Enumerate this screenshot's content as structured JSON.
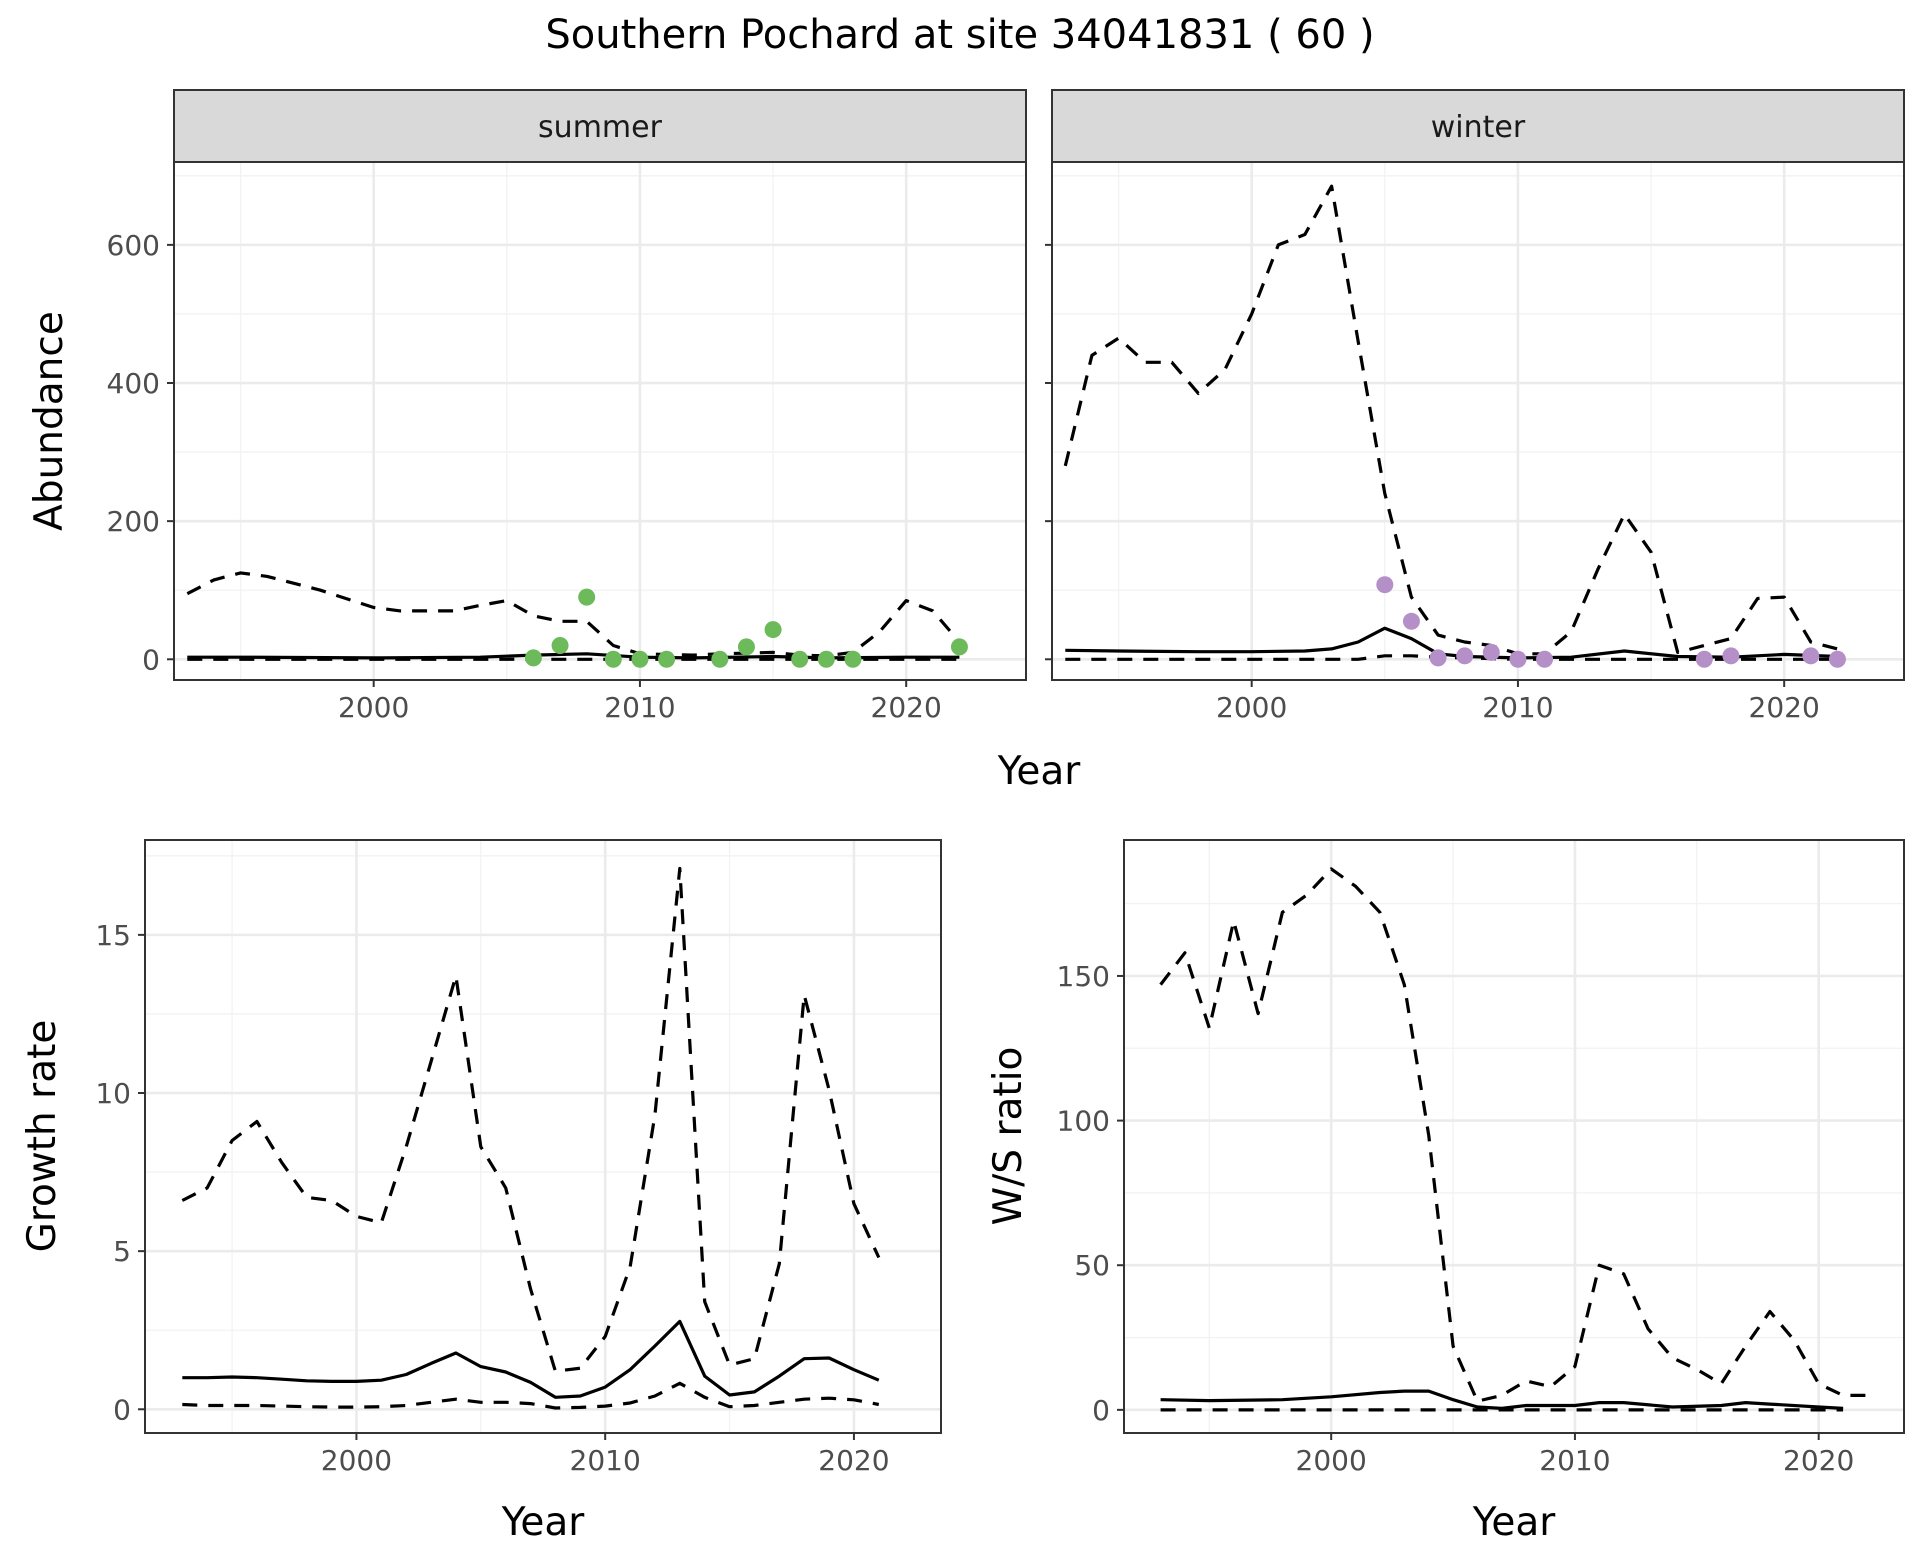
{
  "title": "Southern Pochard at site 34041831 ( 60 )",
  "colors": {
    "summer_points": "#6cba5a",
    "winter_points": "#b48fc8",
    "strip_fill": "#d9d9d9",
    "line": "#000000"
  },
  "chart_data": [
    {
      "type": "line",
      "id": "abundance_summer",
      "strip": "summer",
      "xlabel": "",
      "ylabel": "Abundance",
      "xlim": [
        1992.5,
        2024.5
      ],
      "ylim": [
        -30,
        720
      ],
      "xticks": [
        2000,
        2010,
        2020
      ],
      "yticks": [
        0,
        200,
        400,
        600
      ],
      "yticks_labelled": true,
      "series": [
        {
          "style": "solid",
          "x": [
            1993,
            1995,
            2000,
            2004,
            2006,
            2008,
            2010,
            2012,
            2015,
            2017,
            2020,
            2022
          ],
          "y": [
            3,
            3,
            2,
            3,
            6,
            8,
            3,
            2,
            4,
            2,
            3,
            3
          ]
        },
        {
          "style": "dashed",
          "x": [
            1993,
            1994,
            1995,
            1996,
            1998,
            2000,
            2001,
            2003,
            2004,
            2005,
            2006,
            2007,
            2008,
            2009,
            2010,
            2012,
            2013,
            2015,
            2016,
            2017,
            2018,
            2019,
            2020,
            2021,
            2022
          ],
          "y": [
            95,
            115,
            125,
            120,
            100,
            75,
            70,
            70,
            78,
            85,
            63,
            55,
            55,
            20,
            8,
            6,
            8,
            10,
            6,
            5,
            10,
            40,
            85,
            70,
            25
          ]
        },
        {
          "style": "dashed",
          "x": [
            1993,
            2000,
            2010,
            2020,
            2022
          ],
          "y": [
            0,
            0,
            0,
            0,
            0
          ]
        }
      ],
      "points": {
        "x": [
          2006,
          2007,
          2008,
          2009,
          2010,
          2011,
          2013,
          2014,
          2015,
          2016,
          2017,
          2018,
          2022
        ],
        "y": [
          2,
          20,
          90,
          0,
          0,
          0,
          0,
          18,
          43,
          0,
          0,
          0,
          18
        ]
      }
    },
    {
      "type": "line",
      "id": "abundance_winter",
      "strip": "winter",
      "xlabel": "",
      "ylabel": "",
      "xlim": [
        1992.5,
        2024.5
      ],
      "ylim": [
        -30,
        720
      ],
      "xticks": [
        2000,
        2010,
        2020
      ],
      "yticks": [
        0,
        200,
        400,
        600
      ],
      "yticks_labelled": false,
      "series": [
        {
          "style": "solid",
          "x": [
            1993,
            1995,
            1998,
            2000,
            2002,
            2003,
            2004,
            2005,
            2006,
            2007,
            2008,
            2010,
            2012,
            2014,
            2016,
            2018,
            2020,
            2022
          ],
          "y": [
            13,
            12,
            11,
            11,
            12,
            15,
            25,
            45,
            30,
            8,
            4,
            2,
            3,
            12,
            4,
            3,
            7,
            4
          ]
        },
        {
          "style": "dashed",
          "x": [
            1993,
            1994,
            1995,
            1996,
            1997,
            1998,
            1999,
            2000,
            2001,
            2002,
            2003,
            2004,
            2005,
            2006,
            2007,
            2008,
            2009,
            2010,
            2011,
            2012,
            2013,
            2014,
            2015,
            2016,
            2017,
            2018,
            2019,
            2020,
            2021,
            2022
          ],
          "y": [
            280,
            440,
            465,
            430,
            430,
            385,
            420,
            500,
            600,
            615,
            685,
            460,
            240,
            90,
            35,
            25,
            20,
            8,
            8,
            40,
            130,
            210,
            155,
            10,
            20,
            30,
            88,
            90,
            25,
            15
          ]
        },
        {
          "style": "dashed",
          "x": [
            1993,
            2000,
            2004,
            2005,
            2006,
            2007,
            2010,
            2015,
            2020,
            2022
          ],
          "y": [
            0,
            0,
            0,
            5,
            5,
            3,
            0,
            0,
            0,
            0
          ]
        }
      ],
      "points": {
        "x": [
          2005,
          2006,
          2007,
          2008,
          2009,
          2010,
          2011,
          2017,
          2018,
          2021,
          2022
        ],
        "y": [
          108,
          55,
          2,
          5,
          10,
          0,
          0,
          0,
          5,
          5,
          0
        ]
      }
    },
    {
      "type": "line",
      "id": "growth_rate",
      "xlabel": "Year",
      "ylabel": "Growth rate",
      "xlim": [
        1991.5,
        2023.5
      ],
      "ylim": [
        -0.75,
        18.0
      ],
      "xticks": [
        2000,
        2010,
        2020
      ],
      "yticks": [
        0,
        5,
        10,
        15
      ],
      "yticks_labelled": true,
      "series": [
        {
          "style": "solid",
          "x": [
            1993,
            1994,
            1995,
            1996,
            1997,
            1998,
            1999,
            2000,
            2001,
            2002,
            2003,
            2004,
            2005,
            2006,
            2007,
            2008,
            2009,
            2010,
            2011,
            2012,
            2013,
            2014,
            2015,
            2016,
            2017,
            2018,
            2019,
            2020,
            2021
          ],
          "y": [
            1.0,
            1.0,
            1.02,
            1.0,
            0.95,
            0.9,
            0.88,
            0.88,
            0.92,
            1.1,
            1.45,
            1.78,
            1.35,
            1.18,
            0.85,
            0.38,
            0.42,
            0.7,
            1.25,
            2.0,
            2.78,
            1.05,
            0.45,
            0.55,
            1.05,
            1.6,
            1.62,
            1.25,
            0.92
          ]
        },
        {
          "style": "dashed",
          "x": [
            1993,
            1994,
            1995,
            1996,
            1997,
            1998,
            1999,
            2000,
            2001,
            2002,
            2003,
            2004,
            2005,
            2006,
            2007,
            2008,
            2009,
            2010,
            2011,
            2012,
            2013,
            2014,
            2015,
            2016,
            2017,
            2018,
            2019,
            2020,
            2021
          ],
          "y": [
            6.6,
            7.0,
            8.5,
            9.1,
            7.8,
            6.7,
            6.6,
            6.1,
            5.9,
            8.3,
            11.0,
            13.7,
            8.3,
            7.0,
            3.8,
            1.2,
            1.3,
            2.3,
            4.5,
            9.3,
            17.1,
            3.4,
            1.4,
            1.6,
            4.6,
            13.1,
            10.1,
            6.5,
            4.8
          ]
        },
        {
          "style": "dashed",
          "x": [
            1993,
            1994,
            1995,
            1996,
            1997,
            1998,
            1999,
            2000,
            2001,
            2002,
            2003,
            2004,
            2005,
            2006,
            2007,
            2008,
            2009,
            2010,
            2011,
            2012,
            2013,
            2014,
            2015,
            2016,
            2017,
            2018,
            2019,
            2020,
            2021
          ],
          "y": [
            0.15,
            0.12,
            0.12,
            0.12,
            0.1,
            0.08,
            0.07,
            0.07,
            0.08,
            0.12,
            0.22,
            0.32,
            0.22,
            0.22,
            0.18,
            0.04,
            0.06,
            0.1,
            0.2,
            0.42,
            0.82,
            0.38,
            0.08,
            0.12,
            0.22,
            0.32,
            0.35,
            0.3,
            0.15
          ]
        }
      ]
    },
    {
      "type": "line",
      "id": "ws_ratio",
      "xlabel": "Year",
      "ylabel": "W/S ratio",
      "xlim": [
        1991.5,
        2023.5
      ],
      "ylim": [
        -8,
        197
      ],
      "xticks": [
        2000,
        2010,
        2020
      ],
      "yticks": [
        0,
        50,
        100,
        150
      ],
      "yticks_labelled": true,
      "series": [
        {
          "style": "solid",
          "x": [
            1993,
            1995,
            1998,
            2000,
            2002,
            2003,
            2004,
            2005,
            2006,
            2007,
            2008,
            2010,
            2011,
            2012,
            2014,
            2016,
            2017,
            2018,
            2020,
            2021
          ],
          "y": [
            3.5,
            3.2,
            3.5,
            4.5,
            6.0,
            6.5,
            6.5,
            3.5,
            1.0,
            0.5,
            1.5,
            1.5,
            2.5,
            2.5,
            1.0,
            1.5,
            2.5,
            2.0,
            1.0,
            0.5
          ]
        },
        {
          "style": "dashed",
          "x": [
            1993,
            1994,
            1995,
            1996,
            1997,
            1998,
            1999,
            2000,
            2001,
            2002,
            2003,
            2004,
            2005,
            2006,
            2007,
            2008,
            2009,
            2010,
            2011,
            2012,
            2013,
            2014,
            2015,
            2016,
            2017,
            2018,
            2019,
            2020,
            2021,
            2022
          ],
          "y": [
            147,
            158,
            132,
            169,
            137,
            172,
            178,
            187,
            181,
            172,
            147,
            95,
            22,
            3,
            5,
            10,
            8,
            15,
            50,
            47,
            28,
            18,
            14,
            9,
            22,
            34,
            24,
            9,
            5,
            5
          ]
        },
        {
          "style": "dashed",
          "x": [
            1993,
            2000,
            2005,
            2010,
            2015,
            2020,
            2021
          ],
          "y": [
            0,
            0,
            0,
            0,
            0,
            0,
            0
          ]
        }
      ]
    }
  ]
}
